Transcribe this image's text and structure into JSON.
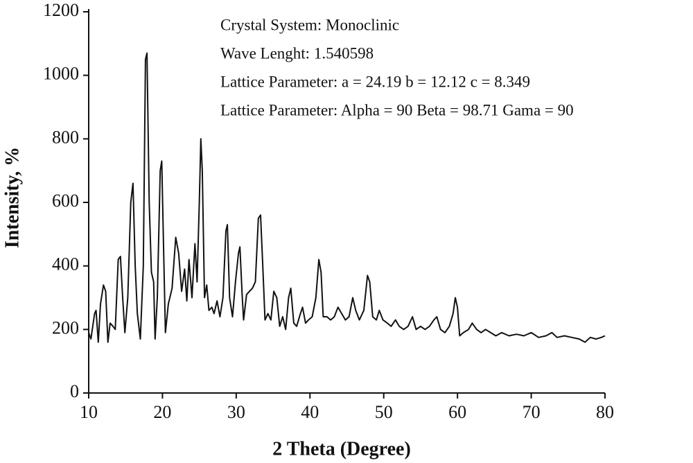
{
  "chart_data": {
    "type": "line",
    "annotations": [
      "Crystal System: Monoclinic",
      "Wave Lenght: 1.540598",
      "Lattice Parameter: a = 24.19   b = 12.12   c = 8.349",
      "Lattice Parameter: Alpha = 90  Beta = 98.71  Gama = 90"
    ],
    "xlabel": "2 Theta (Degree)",
    "ylabel": "Intensity, %",
    "xlim": [
      10,
      80
    ],
    "ylim": [
      0,
      1200
    ],
    "xticks": [
      10,
      20,
      30,
      40,
      50,
      60,
      70,
      80
    ],
    "yticks": [
      0,
      200,
      400,
      600,
      800,
      1000,
      1200
    ],
    "color": "#111111",
    "x": [
      10.0,
      10.3,
      10.8,
      11.0,
      11.3,
      11.6,
      12.0,
      12.3,
      12.6,
      12.9,
      13.3,
      13.6,
      14.0,
      14.3,
      14.6,
      14.9,
      15.3,
      15.7,
      16.0,
      16.3,
      16.6,
      17.0,
      17.4,
      17.7,
      17.9,
      18.2,
      18.5,
      18.8,
      19.0,
      19.3,
      19.7,
      19.9,
      20.2,
      20.4,
      20.8,
      21.3,
      21.8,
      22.2,
      22.6,
      23.0,
      23.3,
      23.6,
      24.0,
      24.4,
      24.7,
      25.0,
      25.2,
      25.4,
      25.7,
      26.0,
      26.3,
      26.7,
      27.0,
      27.4,
      27.8,
      28.2,
      28.6,
      28.8,
      29.1,
      29.5,
      29.9,
      30.3,
      30.5,
      30.8,
      31.0,
      31.4,
      31.8,
      32.2,
      32.6,
      33.0,
      33.3,
      33.6,
      33.9,
      34.3,
      34.7,
      35.1,
      35.5,
      35.9,
      36.3,
      36.7,
      37.1,
      37.4,
      37.8,
      38.2,
      38.7,
      39.0,
      39.4,
      39.8,
      40.3,
      40.8,
      41.2,
      41.5,
      41.8,
      42.3,
      42.8,
      43.3,
      43.8,
      44.3,
      44.8,
      45.3,
      45.8,
      46.2,
      46.7,
      47.3,
      47.8,
      48.1,
      48.5,
      49.0,
      49.4,
      49.9,
      50.5,
      51.0,
      51.6,
      52.1,
      52.7,
      53.3,
      53.9,
      54.4,
      55.0,
      55.6,
      56.2,
      56.8,
      57.2,
      57.7,
      58.3,
      58.9,
      59.4,
      59.7,
      60.0,
      60.3,
      60.8,
      61.5,
      62.0,
      62.6,
      63.2,
      63.8,
      64.5,
      65.2,
      66.0,
      67.0,
      68.0,
      69.0,
      70.0,
      71.0,
      72.0,
      72.8,
      73.5,
      74.5,
      75.5,
      76.5,
      77.3,
      78.0,
      78.8,
      79.5,
      80.0
    ],
    "values": [
      190,
      170,
      250,
      260,
      160,
      280,
      340,
      320,
      160,
      220,
      210,
      200,
      420,
      430,
      300,
      190,
      300,
      600,
      660,
      400,
      250,
      170,
      400,
      1050,
      1070,
      600,
      380,
      350,
      170,
      300,
      700,
      730,
      400,
      190,
      280,
      330,
      490,
      440,
      320,
      390,
      290,
      420,
      300,
      470,
      350,
      600,
      800,
      700,
      300,
      340,
      260,
      270,
      250,
      290,
      240,
      300,
      510,
      530,
      300,
      240,
      350,
      440,
      460,
      310,
      230,
      310,
      320,
      330,
      350,
      550,
      560,
      400,
      230,
      250,
      230,
      320,
      300,
      210,
      240,
      200,
      300,
      330,
      220,
      210,
      250,
      270,
      220,
      230,
      240,
      300,
      420,
      380,
      240,
      240,
      230,
      240,
      270,
      250,
      230,
      240,
      300,
      260,
      230,
      260,
      370,
      350,
      240,
      230,
      260,
      230,
      220,
      210,
      230,
      210,
      200,
      210,
      240,
      200,
      210,
      200,
      210,
      230,
      240,
      200,
      190,
      210,
      250,
      300,
      270,
      180,
      190,
      200,
      220,
      200,
      190,
      200,
      190,
      180,
      190,
      180,
      185,
      180,
      190,
      175,
      180,
      190,
      175,
      180,
      175,
      170,
      160,
      175,
      170,
      175,
      180
    ]
  }
}
